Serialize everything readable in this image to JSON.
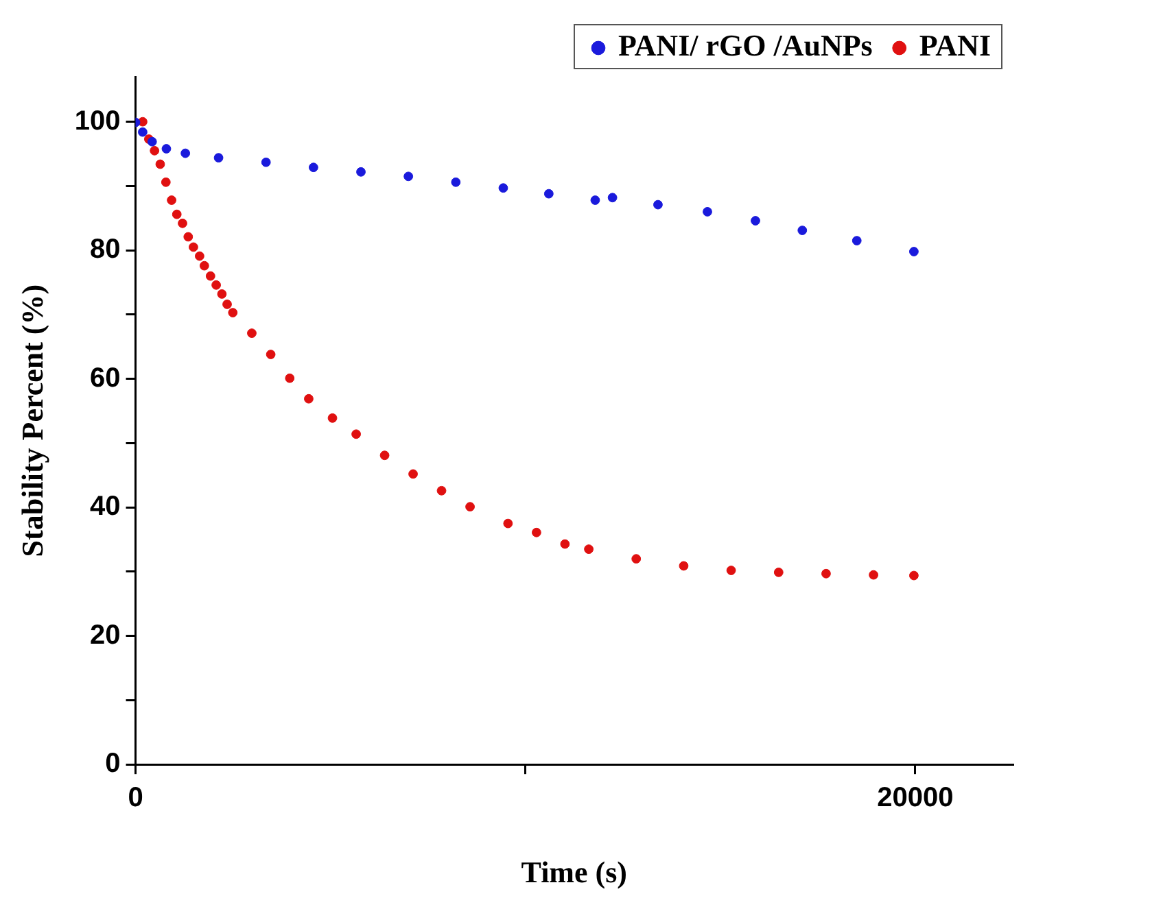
{
  "chart_data": {
    "type": "scatter",
    "xlabel": "Time (s)",
    "ylabel": "Stability Percent (%)",
    "xlim": [
      0,
      22500
    ],
    "xticks": [
      0,
      {
        "value": 10000,
        "label": null
      },
      20000
    ],
    "ylim": [
      0,
      107
    ],
    "yticks": [
      0,
      {
        "value": 10,
        "label": null
      },
      20,
      {
        "value": 30,
        "label": null
      },
      40,
      {
        "value": 50,
        "label": null
      },
      60,
      {
        "value": 70,
        "label": null
      },
      80,
      {
        "value": 90,
        "label": null
      },
      100
    ],
    "grid": false,
    "legend": "top right",
    "marker": "circle",
    "series": [
      {
        "name": "PANI/ rGO /AuNPs",
        "color": "#1a1adc",
        "x": [
          0,
          183,
          426,
          791,
          1278,
          2130,
          3347,
          4564,
          5781,
          6998,
          8215,
          9432,
          10600,
          11790,
          12233,
          13400,
          14668,
          15900,
          17102,
          18500,
          19964
        ],
        "values": [
          99.9,
          98.4,
          96.9,
          95.8,
          95.1,
          94.4,
          93.7,
          92.9,
          92.2,
          91.5,
          90.6,
          89.7,
          88.8,
          87.8,
          88.2,
          87.1,
          86.0,
          84.6,
          83.1,
          81.5,
          79.8
        ]
      },
      {
        "name": "PANI",
        "color": "#e01010",
        "x": [
          183,
          341,
          487,
          633,
          779,
          925,
          1059,
          1205,
          1351,
          1485,
          1643,
          1765,
          1923,
          2069,
          2215,
          2349,
          2495,
          2982,
          3468,
          3955,
          4442,
          5051,
          5659,
          6389,
          7119,
          7849,
          8580,
          9553,
          10284,
          11014,
          11625,
          12842,
          14060,
          15277,
          16495,
          17712,
          18929,
          19964
        ],
        "values": [
          100,
          97.3,
          95.5,
          93.4,
          90.6,
          87.8,
          85.6,
          84.2,
          82.1,
          80.5,
          79.1,
          77.6,
          76.0,
          74.6,
          73.2,
          71.6,
          70.3,
          67.1,
          63.8,
          60.1,
          56.9,
          53.9,
          51.4,
          48.1,
          45.2,
          42.6,
          40.1,
          37.5,
          36.1,
          34.3,
          33.5,
          32.0,
          30.9,
          30.2,
          29.9,
          29.7,
          29.5,
          29.4
        ]
      }
    ]
  }
}
